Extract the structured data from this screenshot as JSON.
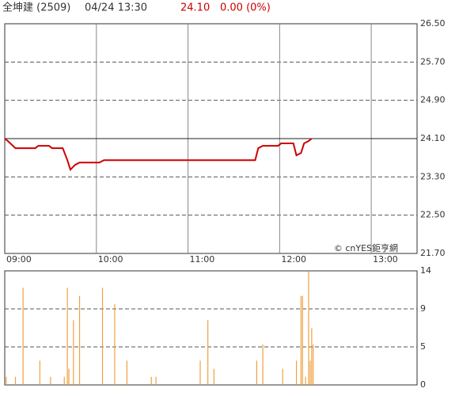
{
  "header": {
    "name": "全坤建 (2509)",
    "datetime": "04/24 13:30",
    "price": "24.10",
    "change": "0.00 (0%)"
  },
  "chart_data": [
    {
      "type": "line",
      "watermark": "© cnYES鉅亨網",
      "x": [
        "09:00",
        "09:02",
        "09:07",
        "09:20",
        "09:22",
        "09:29",
        "09:31",
        "09:38",
        "09:41",
        "09:43",
        "09:46",
        "09:49",
        "10:02",
        "10:05",
        "11:44",
        "11:46",
        "11:49",
        "11:59",
        "12:01",
        "12:09",
        "12:11",
        "12:14",
        "12:16",
        "12:19",
        "12:21"
      ],
      "series": [
        {
          "color": "#cc0000",
          "values": [
            24.1,
            24.05,
            23.9,
            23.9,
            23.95,
            23.95,
            23.9,
            23.9,
            23.65,
            23.45,
            23.55,
            23.6,
            23.6,
            23.65,
            23.65,
            23.9,
            23.95,
            23.95,
            24.0,
            24.0,
            23.75,
            23.8,
            24.0,
            24.05,
            24.1
          ]
        }
      ],
      "reference": 24.1,
      "xlim": [
        "09:00",
        "13:30"
      ],
      "xticks": [
        "09:00",
        "10:00",
        "11:00",
        "12:00",
        "13:00"
      ],
      "ylim": [
        21.7,
        26.5
      ],
      "yticks": [
        {
          "value": 21.7,
          "label": "21.70"
        },
        {
          "value": 22.5,
          "label": "22.50"
        },
        {
          "value": 23.3,
          "label": "23.30"
        },
        {
          "value": 24.1,
          "label": "24.10"
        },
        {
          "value": 24.9,
          "label": "24.90"
        },
        {
          "value": 25.7,
          "label": "25.70"
        },
        {
          "value": 26.5,
          "label": "26.50"
        }
      ],
      "grid": true
    },
    {
      "type": "bar",
      "x": [
        "09:01",
        "09:07",
        "09:12",
        "09:23",
        "09:30",
        "09:39",
        "09:41",
        "09:42",
        "09:45",
        "09:49",
        "10:04",
        "10:12",
        "10:20",
        "10:36",
        "10:39",
        "11:08",
        "11:13",
        "11:17",
        "11:45",
        "11:49",
        "12:02",
        "12:11",
        "12:14",
        "12:15",
        "12:17",
        "12:19",
        "12:20",
        "12:21",
        "12:22"
      ],
      "series": [
        {
          "color": "#f0a040",
          "values": [
            1,
            1,
            12,
            3,
            1,
            1,
            12,
            2,
            8,
            11,
            12,
            10,
            3,
            1,
            1,
            3,
            8,
            2,
            3,
            5,
            2,
            3,
            11,
            11,
            1,
            14,
            3,
            7,
            5
          ]
        }
      ],
      "xlim": [
        "09:00",
        "13:30"
      ],
      "ylim": [
        0,
        14.1
      ],
      "yticks": [
        {
          "value": 0,
          "label": "0"
        },
        {
          "value": 4.7,
          "label": "5"
        },
        {
          "value": 9.4,
          "label": "9"
        },
        {
          "value": 14.1,
          "label": "14"
        }
      ],
      "grid": true
    }
  ]
}
